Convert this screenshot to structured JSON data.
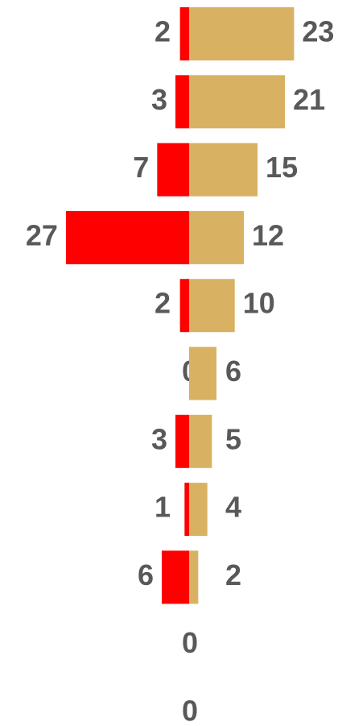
{
  "chart_data": {
    "type": "diverging-bar",
    "categories": [
      null,
      null,
      null,
      null,
      null,
      null,
      null,
      null,
      null,
      null,
      null
    ],
    "series": [
      {
        "color": "#ff0000",
        "values": [
          2,
          3,
          7,
          27,
          2,
          0,
          3,
          1,
          6,
          0,
          0
        ]
      },
      {
        "color": "#d8b262",
        "values": [
          23,
          21,
          15,
          12,
          10,
          6,
          5,
          4,
          2,
          null,
          null
        ]
      }
    ]
  }
}
